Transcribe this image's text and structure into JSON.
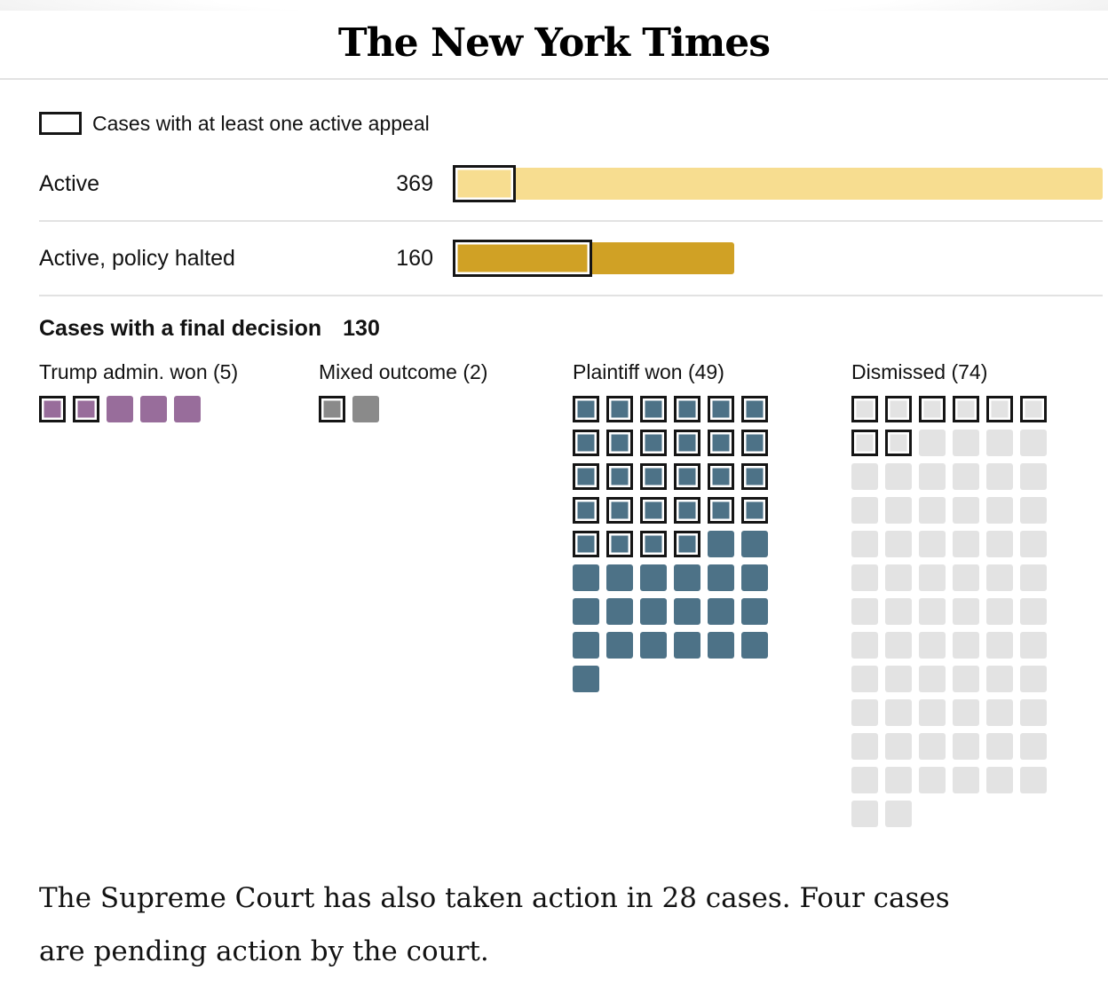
{
  "page": {
    "brand": "The New York Times"
  },
  "legend": {
    "label": "Cases with at least one active appeal"
  },
  "chart_data": [
    {
      "type": "bar",
      "categories": [
        "Active",
        "Active, policy halted"
      ],
      "values": [
        369,
        160
      ],
      "xlim": [
        0,
        369
      ],
      "colors": [
        "#F7DD90",
        "#D0A125"
      ],
      "grid": false,
      "legend_position": "top-left",
      "legend_label": "Cases with at least one active appeal",
      "outlined_segment_meaning": "cases with at least one active appeal",
      "outlined_estimates": [
        36,
        79
      ]
    },
    {
      "type": "waffle",
      "title": "Cases with a final decision",
      "total": 130,
      "columns": 6,
      "categories": [
        "Trump admin. won",
        "Mixed outcome",
        "Plaintiff won",
        "Dismissed"
      ],
      "values": [
        5,
        2,
        49,
        74
      ],
      "outlined_counts": [
        2,
        1,
        28,
        8
      ],
      "labels": [
        "Trump admin. won (5)",
        "Mixed outcome (2)",
        "Plaintiff won (49)",
        "Dismissed (74)"
      ],
      "colors": [
        "#986D9B",
        "#8A8A8A",
        "#4D7287",
        "#E3E3E3"
      ],
      "outlined_segment_meaning": "cases with at least one active appeal"
    }
  ],
  "footer": {
    "lines": [
      "The Supreme Court has also taken action in 28 cases. Four cases",
      "are pending action by the court."
    ]
  }
}
